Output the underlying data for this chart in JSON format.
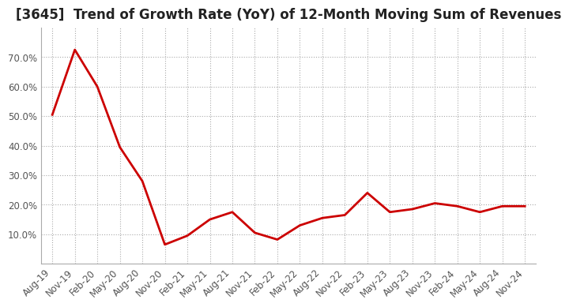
{
  "title": "[3645]  Trend of Growth Rate (YoY) of 12-Month Moving Sum of Revenues",
  "line_color": "#cc0000",
  "line_width": 2.0,
  "background_color": "#ffffff",
  "plot_bg_color": "#ffffff",
  "grid_color": "#aaaaaa",
  "ylabel_color": "#555555",
  "xlabel_color": "#555555",
  "x_labels": [
    "Aug-19",
    "Nov-19",
    "Feb-20",
    "May-20",
    "Aug-20",
    "Nov-20",
    "Feb-21",
    "May-21",
    "Aug-21",
    "Nov-21",
    "Feb-22",
    "May-22",
    "Aug-22",
    "Nov-22",
    "Feb-23",
    "May-23",
    "Aug-23",
    "Nov-23",
    "Feb-24",
    "May-24",
    "Aug-24",
    "Nov-24"
  ],
  "y_values": [
    0.505,
    0.725,
    0.6,
    0.395,
    0.28,
    0.065,
    0.095,
    0.15,
    0.175,
    0.105,
    0.082,
    0.13,
    0.155,
    0.165,
    0.24,
    0.175,
    0.185,
    0.205,
    0.195,
    0.175,
    0.195,
    0.195
  ],
  "ylim": [
    0.0,
    0.8
  ],
  "yticks": [
    0.1,
    0.2,
    0.3,
    0.4,
    0.5,
    0.6,
    0.7
  ],
  "title_fontsize": 12,
  "tick_fontsize": 8.5
}
